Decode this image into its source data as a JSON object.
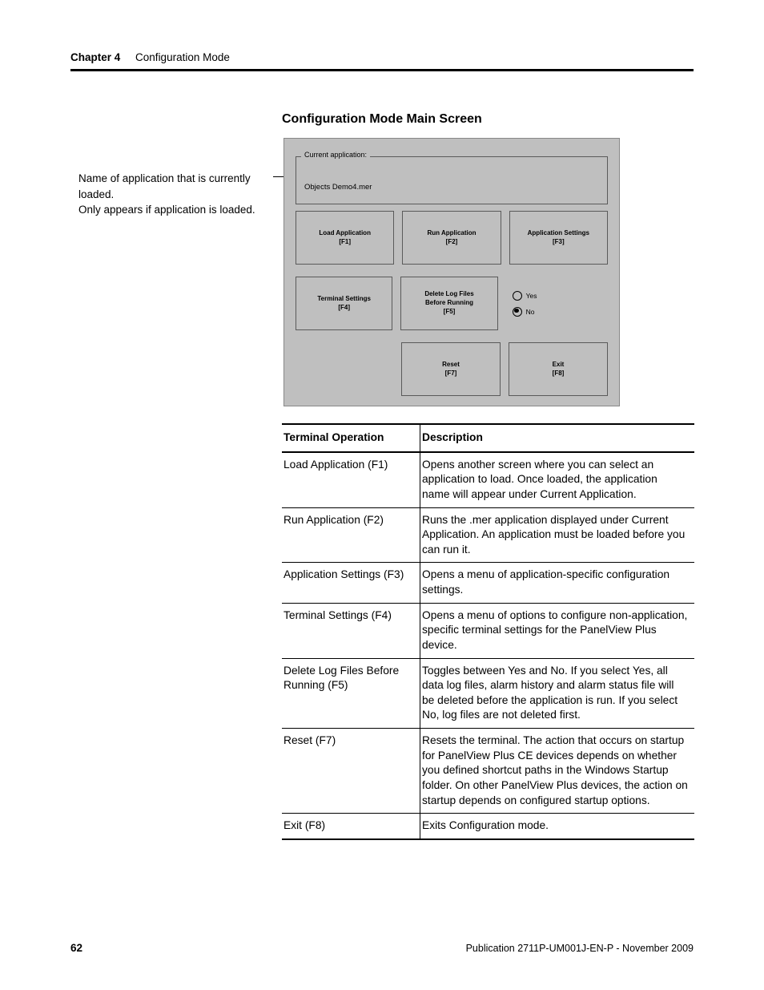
{
  "header": {
    "chapter_label": "Chapter 4",
    "chapter_title": "Configuration Mode"
  },
  "section_heading": "Configuration Mode Main Screen",
  "side_note": {
    "line1": "Name of application that is currently loaded.",
    "line2": "Only appears if application is loaded."
  },
  "terminal": {
    "background_color": "#bfbfbf",
    "current_label": "Current application:",
    "current_value": "Objects Demo4.mer",
    "buttons": {
      "f1": {
        "label": "Load Application",
        "key": "[F1]"
      },
      "f2": {
        "label": "Run Application",
        "key": "[F2]"
      },
      "f3": {
        "label": "Application Settings",
        "key": "[F3]"
      },
      "f4": {
        "label": "Terminal Settings",
        "key": "[F4]"
      },
      "f5": {
        "label1": "Delete Log Files",
        "label2": "Before Running",
        "key": "[F5]"
      },
      "f7": {
        "label": "Reset",
        "key": "[F7]"
      },
      "f8": {
        "label": "Exit",
        "key": "[F8]"
      }
    },
    "radio": {
      "yes": "Yes",
      "no": "No",
      "selected": "No"
    }
  },
  "table": {
    "columns": [
      "Terminal Operation",
      "Description"
    ],
    "rows": [
      {
        "op": "Load Application (F1)",
        "desc": "Opens another screen where you can select an application to load. Once loaded, the application name will appear under Current Application."
      },
      {
        "op": "Run Application (F2)",
        "desc": "Runs the .mer application displayed under Current Application. An application must be loaded before you can run it."
      },
      {
        "op": "Application Settings (F3)",
        "desc": "Opens a menu of application-specific configuration settings."
      },
      {
        "op": "Terminal Settings (F4)",
        "desc": "Opens a menu of options to configure non-application, specific terminal settings for the PanelView Plus device."
      },
      {
        "op": "Delete Log Files Before Running (F5)",
        "desc": "Toggles between Yes and No. If you select Yes, all data log files, alarm history and alarm status file will be deleted before the application is run. If you select No, log files are not deleted first."
      },
      {
        "op": "Reset (F7)",
        "desc": "Resets the terminal. The action that occurs on startup for PanelView Plus CE devices depends on whether you defined shortcut paths in the Windows Startup folder. On other PanelView Plus devices, the action on startup depends on configured startup options."
      },
      {
        "op": "Exit (F8)",
        "desc": "Exits Configuration mode."
      }
    ]
  },
  "footer": {
    "page_number": "62",
    "publication": "Publication 2711P-UM001J-EN-P - November 2009"
  }
}
